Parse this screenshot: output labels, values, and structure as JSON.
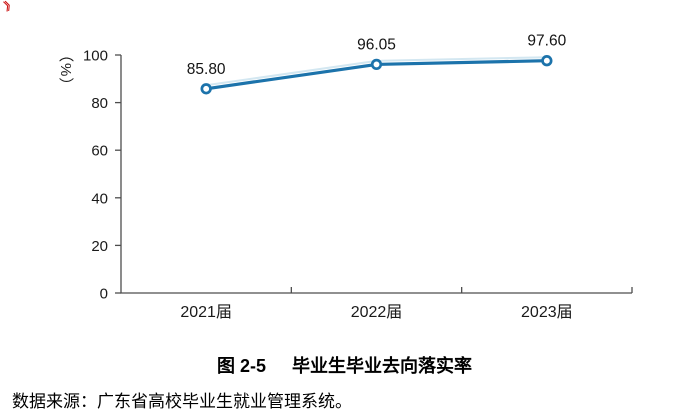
{
  "page": {
    "corner_mark": "》"
  },
  "chart_data": {
    "type": "line",
    "title": "毕业生毕业去向落实率",
    "categories": [
      "2021届",
      "2022届",
      "2023届"
    ],
    "series": [
      {
        "name": "毕业生毕业去向落实率",
        "values": [
          85.8,
          96.05,
          97.6
        ]
      }
    ],
    "data_labels": [
      "85.80",
      "96.05",
      "97.60"
    ],
    "ylabel": "（%）",
    "xlabel": "",
    "ylim": [
      0,
      100
    ],
    "yticks": [
      0,
      20,
      40,
      60,
      80,
      100
    ],
    "ytick_labels": [
      "0",
      "20",
      "40",
      "60",
      "80",
      "100"
    ],
    "grid": "off",
    "legend": "none",
    "line_color": "#1C73AB",
    "line_shadow_color": "#9ECAE1",
    "marker_fill": "#FFFFFF",
    "axis_color": "#4D4D4D",
    "label_color": "#1A1A1A"
  },
  "caption": {
    "figure_label": "图 2-5",
    "title": "毕业生毕业去向落实率"
  },
  "source_note": {
    "text": "数据来源：广东省高校毕业生就业管理系统。"
  }
}
